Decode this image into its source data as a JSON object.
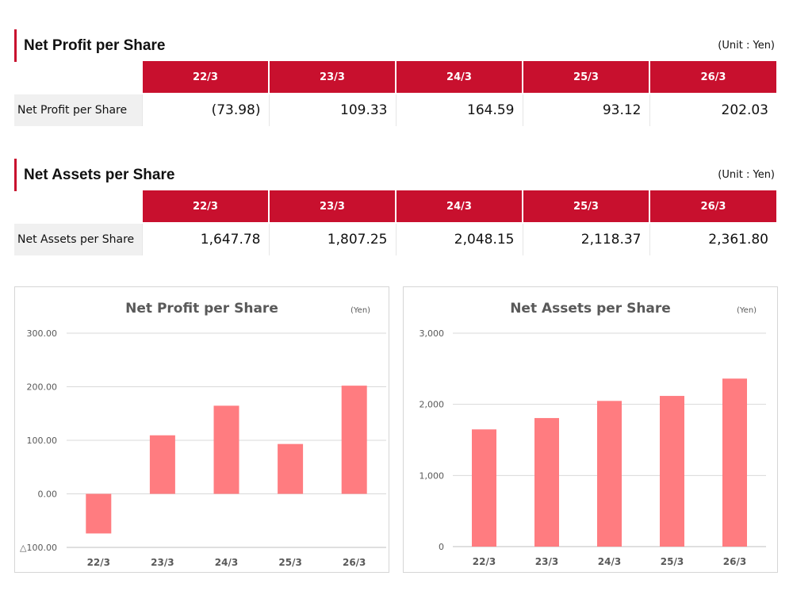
{
  "tables": [
    {
      "title": "Net Profit per Share",
      "unit": "(Unit : Yen)",
      "columns": [
        "22/3",
        "23/3",
        "24/3",
        "25/3",
        "26/3"
      ],
      "row_label": "Net Profit per Share",
      "values": [
        "(73.98)",
        "109.33",
        "164.59",
        "93.12",
        "202.03"
      ]
    },
    {
      "title": "Net Assets per Share",
      "unit": "(Unit : Yen)",
      "columns": [
        "22/3",
        "23/3",
        "24/3",
        "25/3",
        "26/3"
      ],
      "row_label": "Net Assets per Share",
      "values": [
        "1,647.78",
        "1,807.25",
        "2,048.15",
        "2,118.37",
        "2,361.80"
      ]
    }
  ],
  "colors": {
    "accent": "#c8102e",
    "bar": "#ff7c80",
    "grid": "#d9d9d9",
    "axis_text": "#595959"
  },
  "chart_data": [
    {
      "type": "bar",
      "title": "Net Profit per Share",
      "unit": "(Yen)",
      "categories": [
        "22/3",
        "23/3",
        "24/3",
        "25/3",
        "26/3"
      ],
      "values": [
        -73.98,
        109.33,
        164.59,
        93.12,
        202.03
      ],
      "ylim": [
        -100,
        300
      ],
      "yticks": [
        -100,
        0,
        100,
        200,
        300
      ],
      "ytick_labels": [
        "△100.00",
        "0.00",
        "100.00",
        "200.00",
        "300.00"
      ],
      "grid": true
    },
    {
      "type": "bar",
      "title": "Net Assets per Share",
      "unit": "(Yen)",
      "categories": [
        "22/3",
        "23/3",
        "24/3",
        "25/3",
        "26/3"
      ],
      "values": [
        1647.78,
        1807.25,
        2048.15,
        2118.37,
        2361.8
      ],
      "ylim": [
        0,
        3000
      ],
      "yticks": [
        0,
        1000,
        2000,
        3000
      ],
      "ytick_labels": [
        "0",
        "1,000",
        "2,000",
        "3,000"
      ],
      "grid": true
    }
  ]
}
